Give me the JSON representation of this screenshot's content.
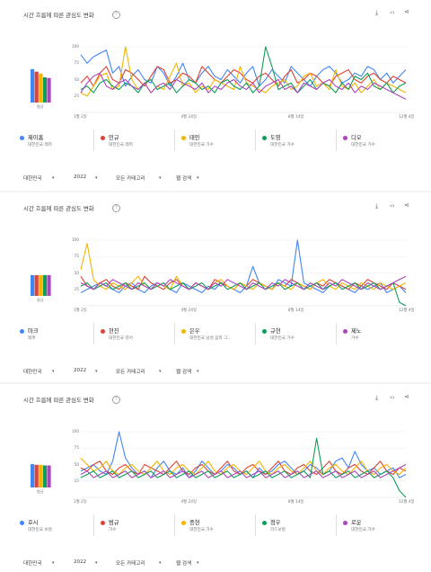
{
  "panels": [
    {
      "title": "시간 흐름에 따른 관심도 변화",
      "avg_label": "평균",
      "y_ticks": [
        "100",
        "75",
        "50",
        "25"
      ],
      "x_ticks": [
        "1월 2일",
        "4월 24일",
        "8월 14일",
        "12월 4일"
      ],
      "terms": [
        {
          "name": "제이홉",
          "sub": "대한민국 래퍼",
          "color": "#4285f4",
          "avg": 53
        },
        {
          "name": "민규",
          "sub": "대한민국 래퍼",
          "color": "#db4437",
          "avg": 49
        },
        {
          "name": "태민",
          "sub": "대한민국 가수",
          "color": "#f4b400",
          "avg": 46
        },
        {
          "name": "도영",
          "sub": "대한민국 가수",
          "color": "#0f9d58",
          "avg": 40
        },
        {
          "name": "디오",
          "sub": "대한민국 가수",
          "color": "#ab47bc",
          "avg": 39
        }
      ],
      "filters": {
        "region": "대한민국",
        "year": "2022",
        "category": "모든 카테고리",
        "search_type": "웹 검색"
      }
    },
    {
      "title": "시간 흐름에 따른 관심도 변화",
      "avg_label": "평균",
      "y_ticks": [
        "100",
        "75",
        "50",
        "25"
      ],
      "x_ticks": [
        "1월 2일",
        "4월 24일",
        "8월 14일",
        "12월 4일"
      ],
      "terms": [
        {
          "name": "마크",
          "sub": "래퍼",
          "color": "#4285f4",
          "avg": 33
        },
        {
          "name": "현진",
          "sub": "대한민국 댄서",
          "color": "#db4437",
          "avg": 33
        },
        {
          "name": "은우",
          "sub": "대한민국 남성 음악 그...",
          "color": "#f4b400",
          "avg": 33
        },
        {
          "name": "규현",
          "sub": "대한민국 가수",
          "color": "#0f9d58",
          "avg": 33
        },
        {
          "name": "제노",
          "sub": "가수",
          "color": "#ab47bc",
          "avg": 33
        }
      ],
      "filters": {
        "region": "대한민국",
        "year": "2022",
        "category": "모든 카테고리",
        "search_type": "웹 검색"
      }
    },
    {
      "title": "시간 흐름에 따른 관심도 변화",
      "avg_label": "평균",
      "y_ticks": [
        "100",
        "75",
        "50",
        "25"
      ],
      "x_ticks": [
        "1월 2일",
        "4월 24일",
        "8월 14일",
        "12월 4일"
      ],
      "terms": [
        {
          "name": "호시",
          "sub": "대한민국 보컬",
          "color": "#4285f4",
          "avg": 37
        },
        {
          "name": "범규",
          "sub": "가수",
          "color": "#db4437",
          "avg": 36
        },
        {
          "name": "종현",
          "sub": "대한민국 가수",
          "color": "#f4b400",
          "avg": 36
        },
        {
          "name": "정우",
          "sub": "리드보컬",
          "color": "#0f9d58",
          "avg": 35
        },
        {
          "name": "로운",
          "sub": "대한민국 가수",
          "color": "#ab47bc",
          "avg": 35
        }
      ],
      "filters": {
        "region": "대한민국",
        "year": "2022",
        "category": "모든 카테고리",
        "search_type": "웹 검색"
      }
    }
  ],
  "chart_data": [
    {
      "type": "line",
      "title": "시간 흐름에 따른 관심도 변화",
      "ylim": [
        0,
        100
      ],
      "x_ticks": [
        "1월 2일",
        "4월 24일",
        "8월 14일",
        "12월 4일"
      ],
      "series": [
        {
          "name": "제이홉",
          "values": [
            88,
            75,
            85,
            90,
            95,
            60,
            70,
            40,
            55,
            65,
            50,
            45,
            70,
            60,
            40,
            55,
            75,
            50,
            45,
            60,
            70,
            55,
            50,
            65,
            55,
            45,
            60,
            70,
            40,
            50,
            65,
            55,
            45,
            70,
            60,
            50,
            40,
            55,
            65,
            70,
            60,
            45,
            50,
            60,
            55,
            70,
            65,
            50,
            60,
            45,
            55,
            65
          ]
        },
        {
          "name": "민규",
          "values": [
            45,
            55,
            40,
            60,
            70,
            50,
            45,
            65,
            60,
            50,
            40,
            55,
            70,
            65,
            45,
            50,
            60,
            55,
            45,
            70,
            60,
            50,
            45,
            55,
            65,
            60,
            50,
            45,
            55,
            60,
            50,
            40,
            55,
            65,
            45,
            50,
            60,
            55,
            45,
            40,
            55,
            60,
            65,
            50,
            45,
            55,
            60,
            50,
            45,
            55,
            50,
            45
          ]
        },
        {
          "name": "태민",
          "values": [
            30,
            25,
            40,
            55,
            60,
            35,
            40,
            100,
            50,
            35,
            45,
            30,
            40,
            35,
            55,
            75,
            40,
            45,
            30,
            40,
            35,
            50,
            45,
            40,
            35,
            70,
            45,
            40,
            35,
            30,
            40,
            45,
            50,
            35,
            40,
            55,
            60,
            40,
            45,
            35,
            65,
            40,
            35,
            45,
            30,
            40,
            50,
            35,
            45,
            40,
            35,
            30
          ]
        },
        {
          "name": "도영",
          "values": [
            35,
            40,
            30,
            45,
            50,
            40,
            35,
            45,
            40,
            30,
            45,
            50,
            35,
            40,
            45,
            30,
            40,
            50,
            45,
            35,
            40,
            30,
            45,
            50,
            40,
            35,
            45,
            30,
            40,
            100,
            70,
            35,
            40,
            45,
            30,
            40,
            50,
            35,
            45,
            40,
            30,
            45,
            35,
            55,
            50,
            60,
            40,
            35,
            45,
            30,
            40,
            45
          ]
        },
        {
          "name": "디오",
          "values": [
            30,
            45,
            55,
            60,
            40,
            35,
            45,
            50,
            40,
            35,
            45,
            30,
            40,
            45,
            35,
            50,
            45,
            40,
            35,
            45,
            30,
            40,
            35,
            45,
            50,
            40,
            35,
            45,
            30,
            40,
            45,
            50,
            35,
            40,
            30,
            45,
            40,
            35,
            45,
            50,
            40,
            35,
            45,
            30,
            40,
            35,
            45,
            40,
            35,
            30,
            25,
            20
          ]
        }
      ]
    },
    {
      "type": "line",
      "title": "시간 흐름에 따른 관심도 변화",
      "ylim": [
        0,
        100
      ],
      "x_ticks": [
        "1월 2일",
        "4월 24일",
        "8월 14일",
        "12월 4일"
      ],
      "series": [
        {
          "name": "마크",
          "values": [
            20,
            25,
            30,
            35,
            30,
            25,
            20,
            30,
            35,
            25,
            20,
            30,
            35,
            30,
            25,
            20,
            35,
            30,
            25,
            20,
            30,
            25,
            35,
            30,
            25,
            20,
            30,
            60,
            35,
            30,
            25,
            40,
            35,
            30,
            100,
            35,
            30,
            25,
            20,
            30,
            35,
            30,
            25,
            20,
            30,
            25,
            30,
            35,
            20,
            25,
            30,
            20
          ]
        },
        {
          "name": "현진",
          "values": [
            45,
            30,
            25,
            35,
            40,
            30,
            25,
            35,
            30,
            25,
            45,
            35,
            30,
            25,
            35,
            40,
            30,
            25,
            35,
            30,
            25,
            40,
            35,
            30,
            25,
            35,
            30,
            40,
            35,
            30,
            25,
            35,
            30,
            40,
            35,
            30,
            25,
            35,
            30,
            40,
            35,
            30,
            25,
            35,
            30,
            40,
            35,
            30,
            25,
            35,
            30,
            25
          ]
        },
        {
          "name": "은우",
          "values": [
            55,
            95,
            40,
            30,
            25,
            35,
            30,
            25,
            35,
            45,
            30,
            25,
            35,
            30,
            25,
            45,
            30,
            25,
            35,
            30,
            25,
            35,
            40,
            30,
            25,
            35,
            30,
            25,
            35,
            30,
            25,
            35,
            30,
            25,
            35,
            30,
            25,
            35,
            40,
            30,
            25,
            35,
            30,
            25,
            35,
            30,
            25,
            35,
            30,
            25,
            30,
            35
          ]
        },
        {
          "name": "규현",
          "values": [
            30,
            35,
            25,
            30,
            35,
            25,
            30,
            35,
            25,
            30,
            35,
            25,
            30,
            35,
            25,
            30,
            35,
            25,
            30,
            35,
            25,
            30,
            35,
            25,
            30,
            35,
            25,
            30,
            35,
            25,
            30,
            35,
            25,
            30,
            35,
            25,
            30,
            35,
            25,
            30,
            35,
            25,
            30,
            35,
            25,
            30,
            35,
            25,
            30,
            35,
            5,
            0
          ]
        },
        {
          "name": "제노",
          "values": [
            35,
            30,
            25,
            35,
            30,
            40,
            35,
            30,
            25,
            35,
            30,
            25,
            35,
            30,
            40,
            35,
            30,
            25,
            35,
            30,
            25,
            35,
            30,
            40,
            35,
            30,
            25,
            35,
            30,
            25,
            35,
            30,
            40,
            35,
            30,
            25,
            35,
            30,
            25,
            35,
            30,
            40,
            35,
            30,
            25,
            35,
            30,
            25,
            30,
            35,
            40,
            45
          ]
        }
      ]
    },
    {
      "type": "line",
      "title": "시간 흐름에 따른 관심도 변화",
      "ylim": [
        0,
        100
      ],
      "x_ticks": [
        "1월 2일",
        "4월 24일",
        "8월 14일",
        "12월 4일"
      ],
      "series": [
        {
          "name": "호시",
          "values": [
            40,
            45,
            50,
            40,
            35,
            55,
            100,
            60,
            45,
            35,
            40,
            30,
            45,
            55,
            40,
            35,
            45,
            30,
            40,
            55,
            45,
            35,
            40,
            50,
            45,
            35,
            40,
            30,
            45,
            35,
            40,
            50,
            55,
            45,
            35,
            40,
            50,
            45,
            35,
            40,
            55,
            60,
            45,
            70,
            50,
            40,
            45,
            35,
            40,
            45,
            30,
            35
          ]
        },
        {
          "name": "범규",
          "values": [
            45,
            40,
            50,
            55,
            40,
            35,
            45,
            50,
            40,
            35,
            50,
            45,
            40,
            35,
            45,
            55,
            40,
            35,
            45,
            50,
            40,
            35,
            45,
            55,
            40,
            35,
            45,
            50,
            40,
            35,
            45,
            55,
            40,
            35,
            45,
            50,
            40,
            35,
            45,
            55,
            40,
            35,
            45,
            50,
            40,
            35,
            45,
            55,
            40,
            35,
            45,
            40
          ]
        },
        {
          "name": "종현",
          "values": [
            60,
            50,
            40,
            45,
            55,
            40,
            35,
            45,
            50,
            40,
            35,
            45,
            55,
            40,
            35,
            45,
            50,
            40,
            35,
            45,
            55,
            40,
            35,
            45,
            50,
            40,
            35,
            45,
            55,
            40,
            35,
            45,
            50,
            40,
            35,
            45,
            55,
            40,
            35,
            45,
            50,
            40,
            35,
            45,
            55,
            40,
            35,
            45,
            50,
            40,
            35,
            45
          ]
        },
        {
          "name": "정우",
          "values": [
            30,
            35,
            40,
            30,
            35,
            40,
            30,
            35,
            40,
            30,
            35,
            40,
            30,
            35,
            40,
            30,
            35,
            40,
            30,
            35,
            40,
            30,
            35,
            40,
            30,
            35,
            40,
            30,
            35,
            40,
            30,
            35,
            40,
            30,
            35,
            40,
            30,
            90,
            35,
            40,
            30,
            35,
            40,
            30,
            35,
            40,
            30,
            35,
            40,
            30,
            10,
            0
          ]
        },
        {
          "name": "로운",
          "values": [
            35,
            40,
            30,
            35,
            40,
            30,
            35,
            40,
            30,
            35,
            40,
            30,
            35,
            40,
            30,
            35,
            40,
            30,
            35,
            40,
            30,
            35,
            40,
            30,
            35,
            40,
            30,
            35,
            40,
            30,
            35,
            40,
            30,
            35,
            40,
            30,
            35,
            40,
            30,
            35,
            40,
            30,
            35,
            40,
            30,
            35,
            40,
            30,
            35,
            40,
            45,
            50
          ]
        }
      ]
    }
  ]
}
